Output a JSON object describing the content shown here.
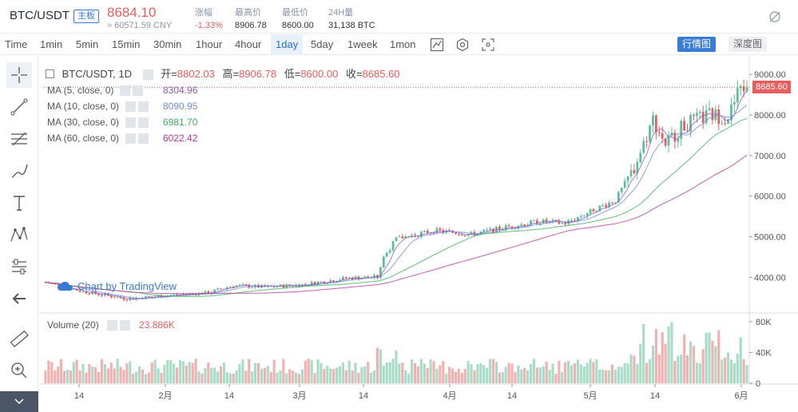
{
  "header": {
    "pair": "BTC/USDT",
    "badge": "主板",
    "price": "8684.10",
    "cny": "≈ 60571.59 CNY",
    "stats": [
      {
        "k": "涨幅",
        "v": "-1.33%"
      },
      {
        "k": "最高价",
        "v": "8906.78"
      },
      {
        "k": "最低价",
        "v": "8600.00"
      },
      {
        "k": "24H量",
        "v": "31,138 BTC"
      }
    ]
  },
  "toolbar": {
    "timeframes": [
      "Time",
      "1min",
      "5min",
      "15min",
      "30min",
      "1hour",
      "4hour",
      "1day",
      "5day",
      "1week",
      "1mon"
    ],
    "active": "1day",
    "tab_primary": "行情图",
    "tab_secondary": "深度图"
  },
  "legend": {
    "title": "BTC/USDT, 1D",
    "open_label": "开=",
    "open": "8802.03",
    "high_label": "高=",
    "high": "8906.78",
    "low_label": "低=",
    "low": "8600.00",
    "close_label": "收=",
    "close": "8685.60",
    "ma": [
      {
        "label": "MA (5, close, 0)",
        "value": "8304.96",
        "color": "#8b5cb8"
      },
      {
        "label": "MA (10, close, 0)",
        "value": "8090.95",
        "color": "#6e8fd6"
      },
      {
        "label": "MA (30, close, 0)",
        "value": "6981.70",
        "color": "#3fae5a"
      },
      {
        "label": "MA (60, close, 0)",
        "value": "6022.42",
        "color": "#b0389a"
      }
    ],
    "volume_label": "Volume (20)",
    "volume_value": "23.886K"
  },
  "chart_data": {
    "type": "candlestick",
    "price_axis": [
      "9000.00",
      "8000.00",
      "7000.00",
      "6000.00",
      "5000.00",
      "4000.00"
    ],
    "volume_axis": [
      "80K",
      "40K",
      "0"
    ],
    "time_axis": [
      "14",
      "2月",
      "14",
      "3月",
      "14",
      "4月",
      "14",
      "5月",
      "14",
      "6月"
    ],
    "last_price": "8685.60",
    "watermark": "Chart by TradingView",
    "ylim": [
      3200,
      9300
    ],
    "vlim": [
      0,
      85000
    ],
    "up_color": "#5bbf9a",
    "down_color": "#e85d5d"
  }
}
